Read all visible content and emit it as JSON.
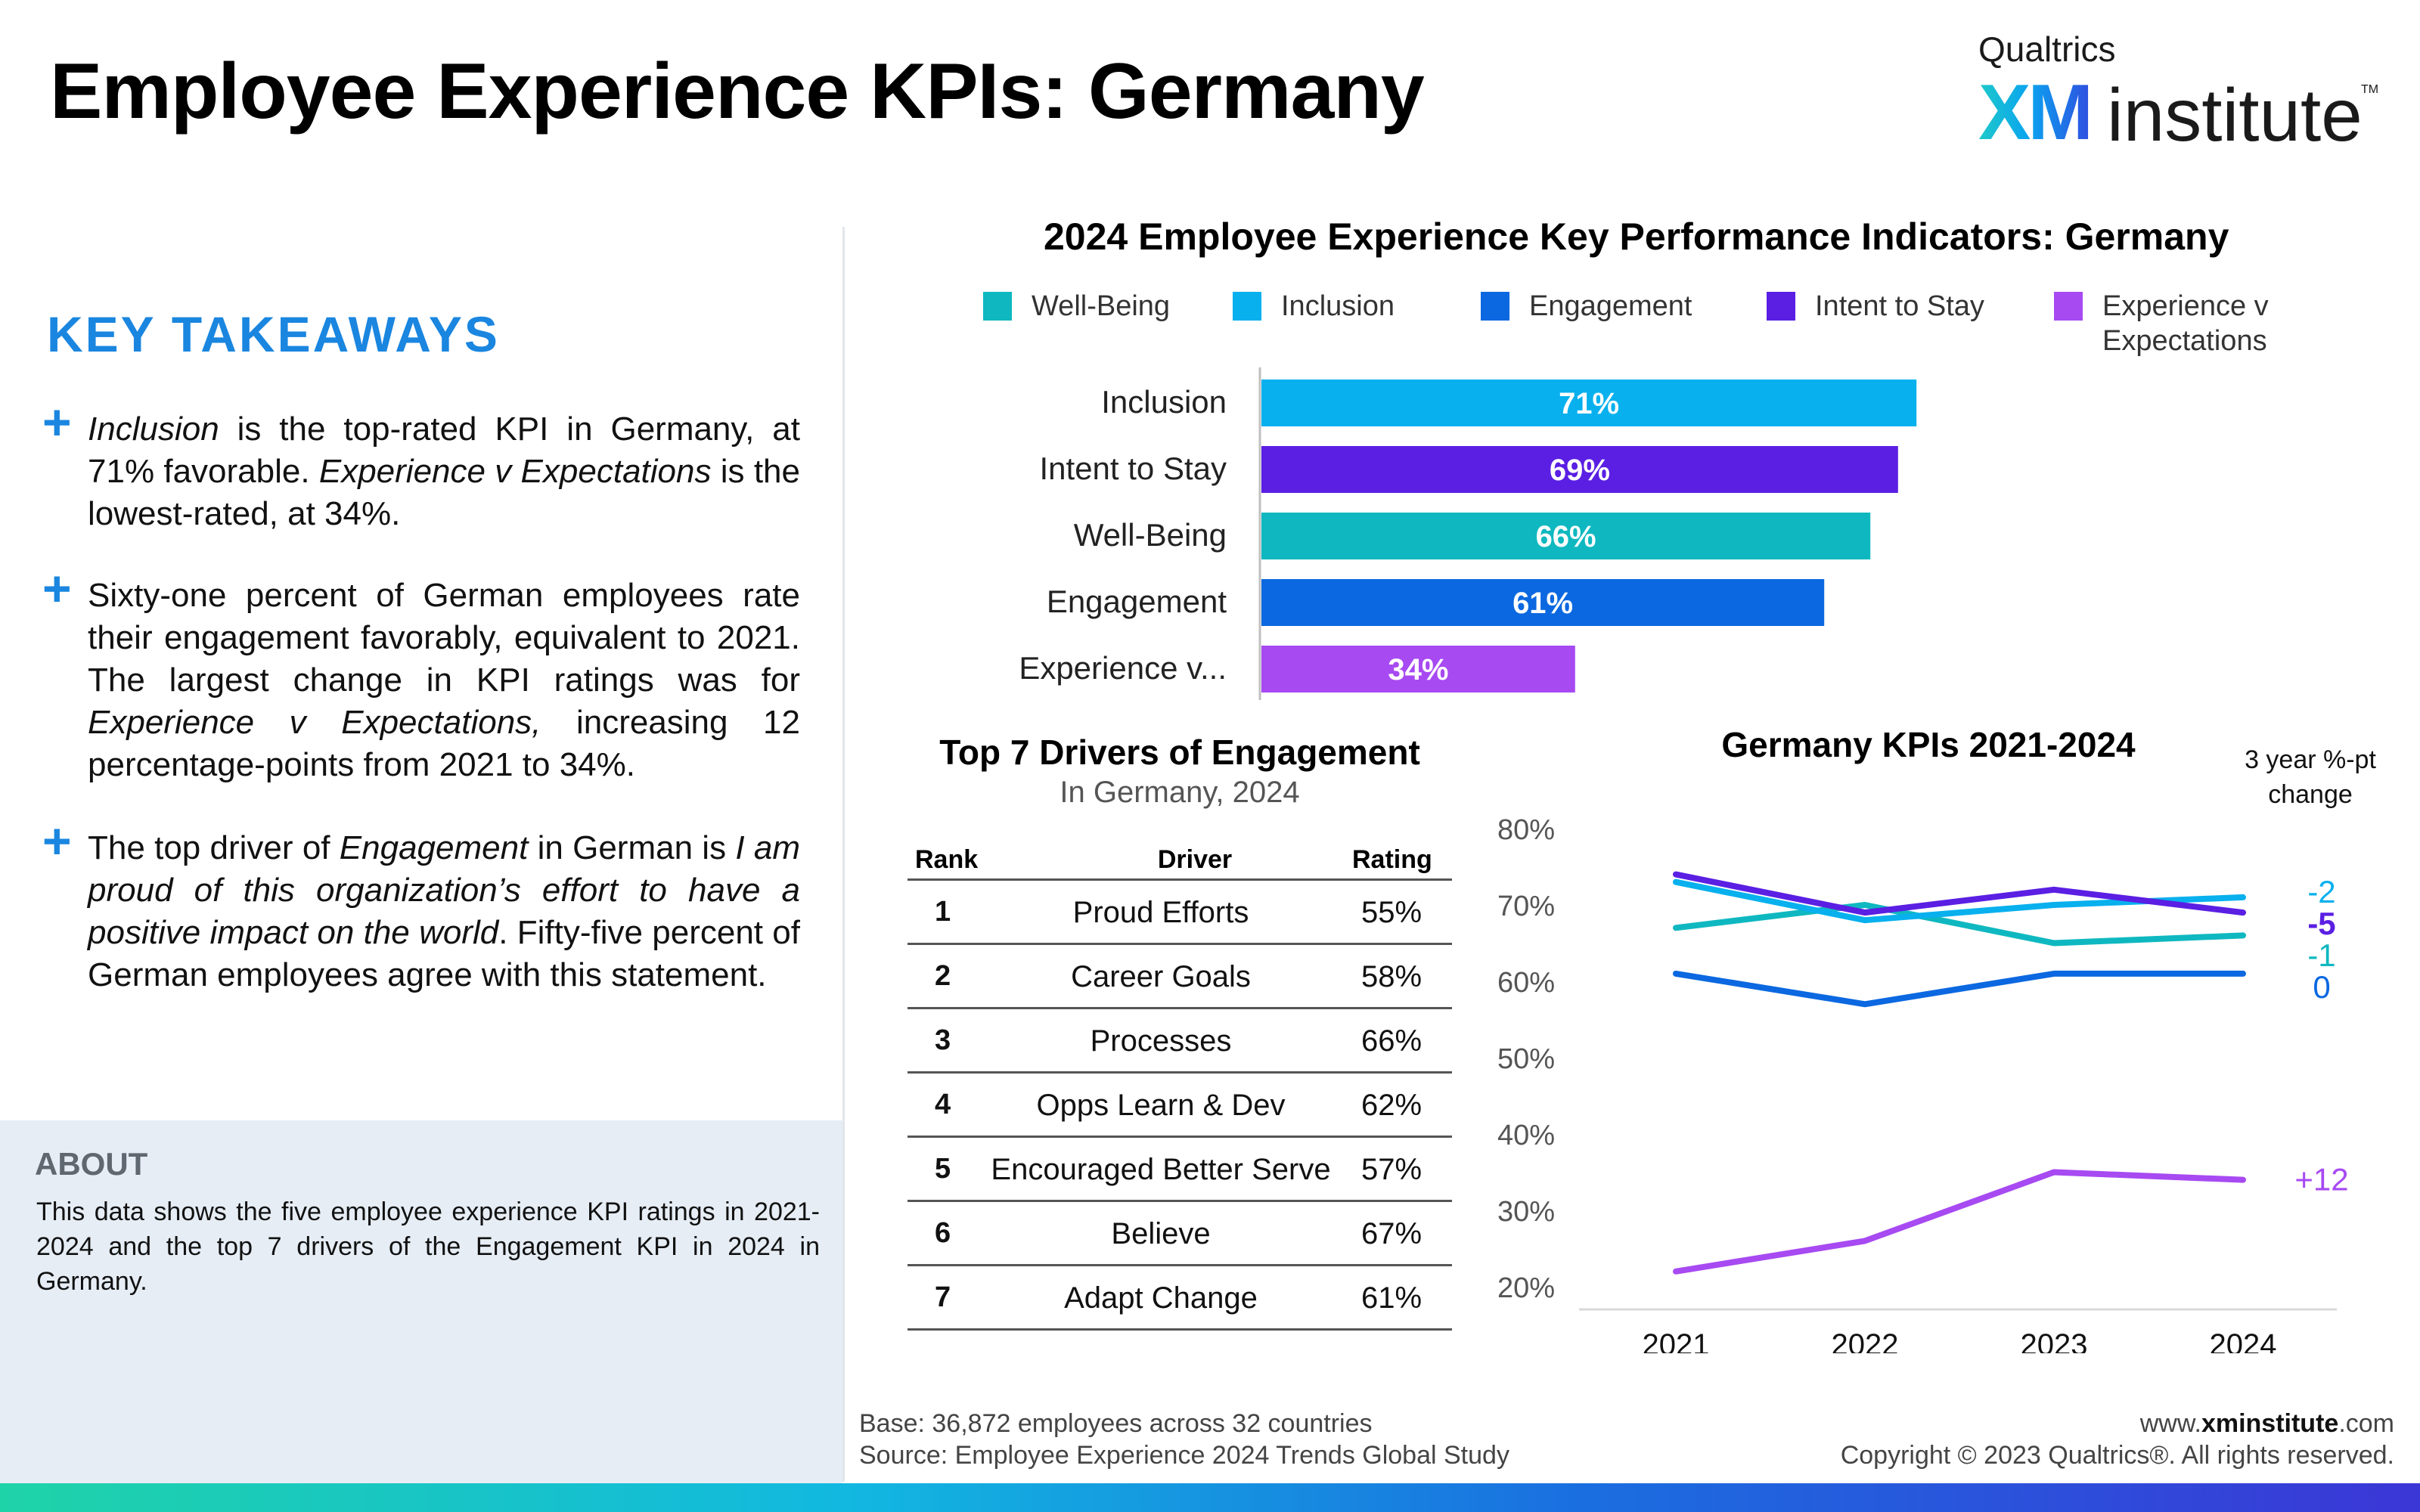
{
  "header": {
    "title": "Employee Experience KPIs: Germany",
    "logo": {
      "top": "Qualtrics",
      "xm": "XM",
      "institute": "institute",
      "tm": "TM"
    }
  },
  "takeaways": {
    "title": "KEY TAKEAWAYS",
    "items": [
      {
        "parts": [
          {
            "t": "Inclusion",
            "i": true
          },
          {
            "t": " is the top-rated KPI in Germany, at 71% favorable. "
          },
          {
            "t": "Experience v Expectations",
            "i": true
          },
          {
            "t": " is the lowest-rated, at 34%."
          }
        ]
      },
      {
        "parts": [
          {
            "t": "Sixty-one percent of German employees rate their engagement favorably, equivalent to 2021. The largest change in KPI ratings was for "
          },
          {
            "t": "Experience v Expectations,",
            "i": true
          },
          {
            "t": " increasing 12 percentage-points from 2021 to 34%."
          }
        ]
      },
      {
        "parts": [
          {
            "t": "The top driver of "
          },
          {
            "t": "Engagement",
            "i": true
          },
          {
            "t": " in German is "
          },
          {
            "t": "I am proud of this organization’s effort to have a positive impact on the world",
            "i": true
          },
          {
            "t": ". Fifty-five percent of German employees agree with this statement."
          }
        ]
      }
    ]
  },
  "about": {
    "title": "ABOUT",
    "text": "This data shows the five employee experience KPI ratings in 2021-2024 and the top 7 drivers of the Engagement KPI in 2024 in Germany."
  },
  "kpi_chart": {
    "title": "2024 Employee Experience Key Performance Indicators: Germany",
    "legend": [
      {
        "label": "Well-Being",
        "color": "#0fb8c0"
      },
      {
        "label": "Inclusion",
        "color": "#08b0ee"
      },
      {
        "label": "Engagement",
        "color": "#0b68e0"
      },
      {
        "label": "Intent to Stay",
        "color": "#5a1fe3"
      },
      {
        "label": "Experience v Expectations",
        "color": "#a74af2"
      }
    ]
  },
  "drivers": {
    "title": "Top 7 Drivers of Engagement",
    "subtitle": "In Germany, 2024",
    "headers": {
      "rank": "Rank",
      "driver": "Driver",
      "rating": "Rating"
    },
    "rows": [
      {
        "rank": "1",
        "driver": "Proud Efforts",
        "rating": "55%"
      },
      {
        "rank": "2",
        "driver": "Career Goals",
        "rating": "58%"
      },
      {
        "rank": "3",
        "driver": "Processes",
        "rating": "66%"
      },
      {
        "rank": "4",
        "driver": "Opps Learn & Dev",
        "rating": "62%"
      },
      {
        "rank": "5",
        "driver": "Encouraged Better Serve",
        "rating": "57%"
      },
      {
        "rank": "6",
        "driver": "Believe",
        "rating": "67%"
      },
      {
        "rank": "7",
        "driver": "Adapt Change",
        "rating": "61%"
      }
    ]
  },
  "line_chart_meta": {
    "title": "Germany KPIs 2021-2024",
    "change_note": "3 year %-pt change"
  },
  "chart_data": [
    {
      "type": "bar",
      "orientation": "horizontal",
      "title": "2024 Employee Experience Key Performance Indicators: Germany",
      "categories": [
        "Inclusion",
        "Intent to Stay",
        "Well-Being",
        "Engagement",
        "Experience v..."
      ],
      "values": [
        71,
        69,
        66,
        61,
        34
      ],
      "value_labels": [
        "71%",
        "69%",
        "66%",
        "61%",
        "34%"
      ],
      "colors": [
        "#08b0ee",
        "#5a1fe3",
        "#0fb8c0",
        "#0b68e0",
        "#a74af2"
      ],
      "xlim": [
        0,
        100
      ],
      "legend_position": "top"
    },
    {
      "type": "line",
      "title": "Germany KPIs 2021-2024",
      "x": [
        "2021",
        "2022",
        "2023",
        "2024"
      ],
      "ylim": [
        20,
        80
      ],
      "y_ticks": [
        "20%",
        "30%",
        "40%",
        "50%",
        "60%",
        "70%",
        "80%"
      ],
      "series": [
        {
          "color": "#0fb8c0",
          "values": [
            67,
            70,
            65,
            66
          ],
          "change": "-1"
        },
        {
          "color": "#08b0ee",
          "values": [
            73,
            68,
            70,
            71
          ],
          "change": "-2"
        },
        {
          "color": "#0b68e0",
          "values": [
            61,
            57,
            61,
            61
          ],
          "change": "0"
        },
        {
          "color": "#5a1fe3",
          "values": [
            74,
            69,
            72,
            69
          ],
          "change": "-5"
        },
        {
          "color": "#a74af2",
          "values": [
            22,
            26,
            35,
            34
          ],
          "change": "+12"
        }
      ]
    }
  ],
  "footer": {
    "base": "Base: 36,872 employees across 32 countries",
    "source": "Source: Employee Experience 2024 Trends Global Study",
    "url_prefix": "www.",
    "url_bold": "xminstitute",
    "url_suffix": ".com",
    "copyright": "Copyright © 2023 Qualtrics®. All rights reserved."
  }
}
